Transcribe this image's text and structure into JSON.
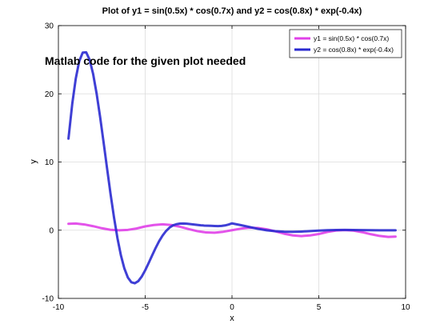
{
  "chart_data": {
    "type": "line",
    "title": "Plot of y1 = sin(0.5x) * cos(0.7x) and y2 = cos(0.8x) * exp(-0.4x)",
    "xlabel": "x",
    "ylabel": "y",
    "xlim": [
      -10,
      10
    ],
    "ylim": [
      -10,
      30
    ],
    "xticks": [
      -10,
      -5,
      0,
      5,
      10
    ],
    "yticks": [
      -10,
      0,
      10,
      20,
      30
    ],
    "grid": true,
    "legend_position": "top-right",
    "annotation": "Matlab code for the given plot needed",
    "series": [
      {
        "name": "y1 = sin(0.5x) * cos(0.7x)",
        "color": "#e040e8",
        "x": [
          -9.42,
          -9.0,
          -8.5,
          -8.0,
          -7.5,
          -7.0,
          -6.5,
          -6.0,
          -5.5,
          -5.0,
          -4.5,
          -4.0,
          -3.5,
          -3.0,
          -2.5,
          -2.0,
          -1.5,
          -1.0,
          -0.5,
          0.0,
          0.5,
          1.0,
          1.5,
          2.0,
          2.5,
          3.0,
          3.5,
          4.0,
          4.5,
          5.0,
          5.5,
          6.0,
          6.5,
          7.0,
          7.5,
          8.0,
          8.5,
          9.0,
          9.42
        ],
        "values": [
          0.94,
          0.98,
          0.84,
          0.59,
          0.29,
          0.06,
          -0.02,
          0.05,
          0.25,
          0.56,
          0.76,
          0.86,
          0.76,
          0.51,
          0.17,
          -0.14,
          -0.33,
          -0.37,
          -0.23,
          0.0,
          0.23,
          0.37,
          0.33,
          0.14,
          -0.17,
          -0.51,
          -0.76,
          -0.86,
          -0.76,
          -0.56,
          -0.25,
          -0.05,
          0.02,
          -0.06,
          -0.29,
          -0.59,
          -0.84,
          -0.98,
          -0.94
        ]
      },
      {
        "name": "y2 = cos(0.8x) * exp(-0.4x)",
        "color": "#2a2ad0",
        "x": [
          -9.42,
          -9.2,
          -9.0,
          -8.8,
          -8.6,
          -8.4,
          -8.2,
          -8.0,
          -7.8,
          -7.6,
          -7.4,
          -7.2,
          -7.0,
          -6.8,
          -6.6,
          -6.4,
          -6.2,
          -6.0,
          -5.8,
          -5.6,
          -5.4,
          -5.2,
          -5.0,
          -4.8,
          -4.6,
          -4.4,
          -4.2,
          -4.0,
          -3.8,
          -3.6,
          -3.4,
          -3.2,
          -3.0,
          -2.8,
          -2.6,
          -2.4,
          -2.2,
          -2.0,
          -1.8,
          -1.6,
          -1.4,
          -1.2,
          -1.0,
          -0.8,
          -0.6,
          -0.4,
          -0.2,
          0.0,
          0.5,
          1.0,
          1.5,
          2.0,
          2.5,
          3.0,
          3.5,
          4.0,
          4.5,
          5.0,
          5.5,
          6.0,
          6.5,
          7.0,
          7.5,
          8.0,
          8.5,
          9.0,
          9.42
        ],
        "values": [
          13.43,
          18.58,
          22.22,
          24.79,
          26.04,
          26.08,
          24.98,
          22.91,
          20.05,
          16.66,
          12.94,
          9.13,
          5.39,
          1.92,
          -1.15,
          -3.68,
          -5.61,
          -6.93,
          -7.63,
          -7.78,
          -7.47,
          -6.8,
          -5.87,
          -4.81,
          -3.69,
          -2.61,
          -1.62,
          -0.79,
          -0.12,
          0.38,
          0.71,
          0.88,
          0.97,
          0.98,
          0.95,
          0.9,
          0.84,
          0.78,
          0.72,
          0.68,
          0.66,
          0.64,
          0.62,
          0.6,
          0.63,
          0.7,
          0.83,
          1.0,
          0.75,
          0.47,
          0.2,
          -0.01,
          -0.15,
          -0.22,
          -0.24,
          -0.2,
          -0.13,
          -0.06,
          0.0,
          0.03,
          0.04,
          0.03,
          0.02,
          0.0,
          -0.01,
          -0.02,
          -0.02
        ]
      }
    ]
  }
}
